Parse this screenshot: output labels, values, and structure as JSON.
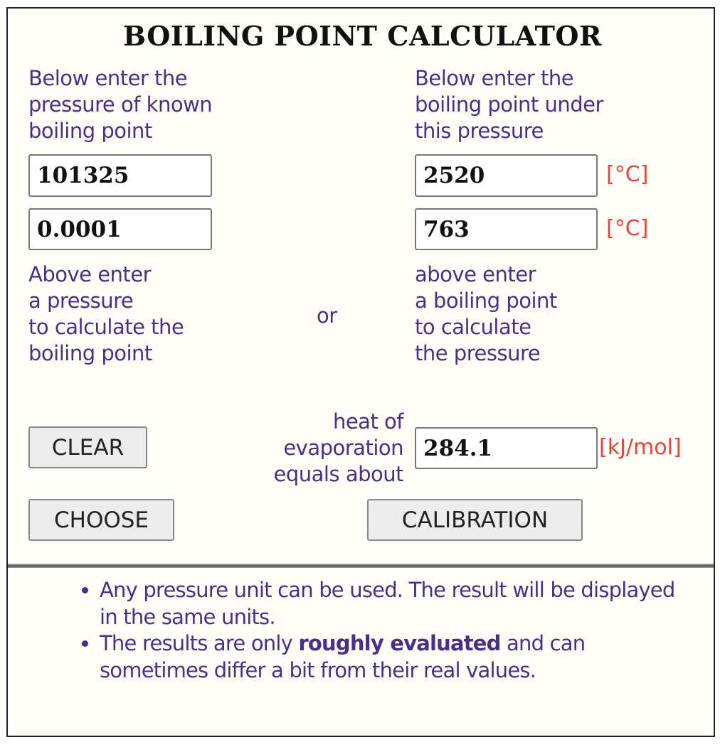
{
  "title": "BOILING POINT CALCULATOR",
  "left_top_label": [
    "Below enter the",
    "pressure of known",
    "boiling point"
  ],
  "right_top_label": [
    "Below enter the",
    "boiling point under",
    "this pressure"
  ],
  "inputs": {
    "known_pressure": "101325",
    "known_boiling_point": "2520",
    "pressure": "0.0001",
    "boiling_point": "763",
    "heat_of_evaporation": "284.1"
  },
  "units": {
    "temperature": "[°C]",
    "heat": "[kJ/mol]"
  },
  "left_bottom_label": [
    "Above enter",
    "a pressure",
    "to calculate the",
    "boiling point"
  ],
  "or_label": "or",
  "right_bottom_label": [
    "above enter",
    "a boiling point",
    "to calculate",
    "the pressure"
  ],
  "heat_label": [
    "heat of",
    "evaporation",
    "equals about"
  ],
  "buttons": {
    "clear": "CLEAR",
    "choose": "CHOOSE",
    "calibration": "CALIBRATION"
  },
  "notes": [
    {
      "text": "Any pressure unit can be used. The result will be displayed in the same units."
    },
    {
      "before": "The results are only ",
      "bold": "roughly evaluated",
      "after": " and can sometimes differ a bit from their real values."
    }
  ],
  "colors": {
    "label": "#4b2e8a",
    "unit": "#e8453c",
    "background": "#fffef8"
  }
}
